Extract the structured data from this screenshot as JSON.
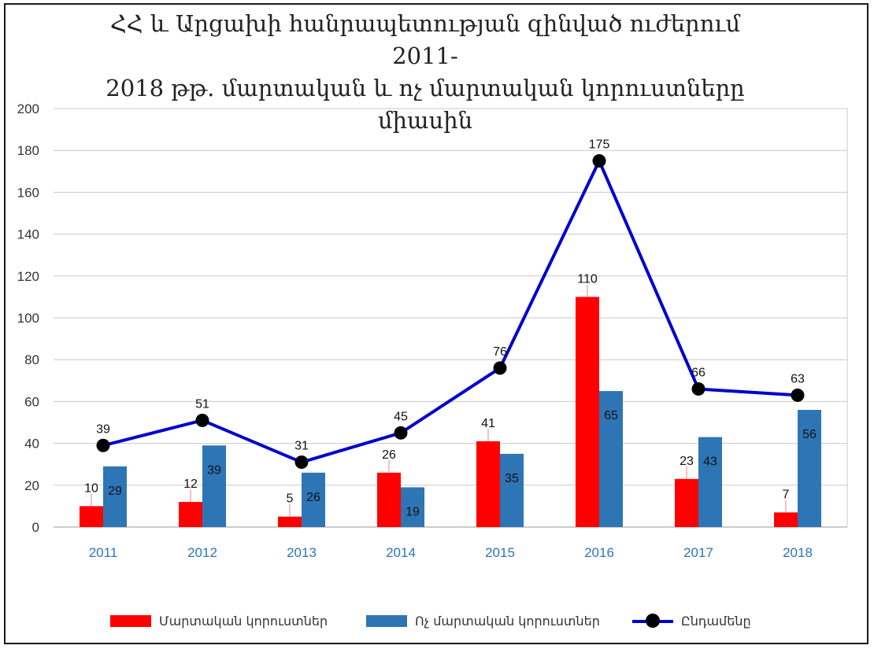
{
  "chart_data": {
    "type": "bar",
    "title_lines": [
      "ՀՀ  և  Արցախի հանրապետության զինված ուժերում  2011-",
      "2018 թթ.  մարտական  և  ոչ մարտական կորուստները",
      "միասին"
    ],
    "categories": [
      "2011",
      "2012",
      "2013",
      "2014",
      "2015",
      "2016",
      "2017",
      "2018"
    ],
    "series": [
      {
        "name": "Մարտական կորուստներ",
        "kind": "bar",
        "color": "#ff0000",
        "values": [
          10,
          12,
          5,
          26,
          41,
          110,
          23,
          7
        ]
      },
      {
        "name": "Ոչ մարտական կորուստներ",
        "kind": "bar",
        "color": "#2e75b6",
        "values": [
          29,
          39,
          26,
          19,
          35,
          65,
          43,
          56
        ]
      },
      {
        "name": "Ընդամենը",
        "kind": "line",
        "color": "#0000cc",
        "marker_color": "#000000",
        "values": [
          39,
          51,
          31,
          45,
          76,
          175,
          66,
          63
        ]
      }
    ],
    "ylim": [
      0,
      200
    ],
    "yticks": [
      "0",
      "20",
      "40",
      "60",
      "80",
      "100",
      "120",
      "140",
      "160",
      "180",
      "200"
    ],
    "grid": true,
    "legend_position": "bottom"
  }
}
